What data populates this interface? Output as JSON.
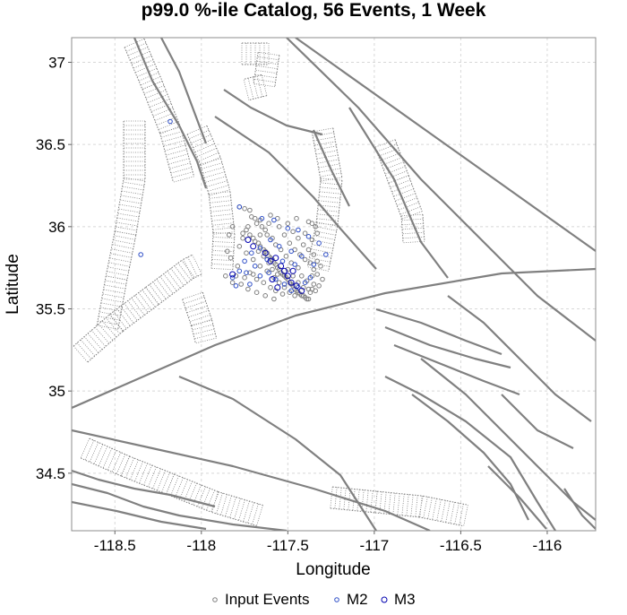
{
  "chart_data": {
    "type": "scatter",
    "title": "p99.0 %-ile Catalog, 56 Events, 1 Week",
    "xlabel": "Longitude",
    "ylabel": "Latitude",
    "xlim": [
      -118.75,
      -115.72
    ],
    "ylim": [
      34.15,
      37.15
    ],
    "x_ticks": [
      -118.5,
      -118,
      -117.5,
      -117,
      -116.5,
      -116
    ],
    "y_ticks": [
      34.5,
      35,
      35.5,
      36,
      36.5,
      37
    ],
    "x_tick_labels": [
      "-118.5",
      "-118",
      "-117.5",
      "-117",
      "-116.5",
      "-116"
    ],
    "y_tick_labels": [
      "34.5",
      "35",
      "35.5",
      "36",
      "36.5",
      "37"
    ],
    "grid": true,
    "legend_position": "bottom-center",
    "colors": {
      "input": "#808080",
      "m2": "#3050c8",
      "m3": "#0000b0",
      "fault": "#808080",
      "grid": "#d8d8d8"
    },
    "series": [
      {
        "name": "Input Events",
        "points": [
          [
            -117.78,
            36.12
          ],
          [
            -117.75,
            36.11
          ],
          [
            -117.72,
            36.1
          ],
          [
            -117.71,
            36.06
          ],
          [
            -117.69,
            36.05
          ],
          [
            -117.74,
            35.98
          ],
          [
            -117.72,
            35.95
          ],
          [
            -117.7,
            35.93
          ],
          [
            -117.69,
            35.91
          ],
          [
            -117.67,
            35.9
          ],
          [
            -117.66,
            35.88
          ],
          [
            -117.64,
            35.86
          ],
          [
            -117.63,
            35.85
          ],
          [
            -117.62,
            35.84
          ],
          [
            -117.61,
            35.82
          ],
          [
            -117.6,
            35.81
          ],
          [
            -117.59,
            35.8
          ],
          [
            -117.58,
            35.78
          ],
          [
            -117.57,
            35.77
          ],
          [
            -117.56,
            35.75
          ],
          [
            -117.55,
            35.74
          ],
          [
            -117.54,
            35.72
          ],
          [
            -117.53,
            35.71
          ],
          [
            -117.52,
            35.7
          ],
          [
            -117.51,
            35.69
          ],
          [
            -117.5,
            35.68
          ],
          [
            -117.49,
            35.66
          ],
          [
            -117.48,
            35.65
          ],
          [
            -117.47,
            35.64
          ],
          [
            -117.46,
            35.62
          ],
          [
            -117.45,
            35.61
          ],
          [
            -117.44,
            35.6
          ],
          [
            -117.43,
            35.59
          ],
          [
            -117.42,
            35.58
          ],
          [
            -117.41,
            35.58
          ],
          [
            -117.4,
            35.57
          ],
          [
            -117.39,
            35.56
          ],
          [
            -117.38,
            35.56
          ],
          [
            -117.37,
            35.6
          ],
          [
            -117.36,
            35.62
          ],
          [
            -117.35,
            35.65
          ],
          [
            -117.76,
            35.93
          ],
          [
            -117.78,
            35.88
          ],
          [
            -117.74,
            35.84
          ],
          [
            -117.7,
            35.8
          ],
          [
            -117.66,
            35.76
          ],
          [
            -117.62,
            35.73
          ],
          [
            -117.58,
            35.69
          ],
          [
            -117.55,
            35.66
          ],
          [
            -117.52,
            35.63
          ],
          [
            -117.49,
            35.6
          ],
          [
            -117.46,
            35.58
          ],
          [
            -117.72,
            35.72
          ],
          [
            -117.68,
            35.68
          ],
          [
            -117.64,
            35.66
          ],
          [
            -117.6,
            35.63
          ],
          [
            -117.57,
            35.61
          ],
          [
            -117.53,
            35.59
          ],
          [
            -117.79,
            35.76
          ],
          [
            -117.8,
            35.7
          ],
          [
            -117.77,
            35.65
          ],
          [
            -117.73,
            35.62
          ],
          [
            -117.68,
            35.6
          ],
          [
            -117.63,
            35.58
          ],
          [
            -117.58,
            35.56
          ],
          [
            -117.55,
            36.0
          ],
          [
            -117.52,
            35.95
          ],
          [
            -117.49,
            35.9
          ],
          [
            -117.46,
            35.86
          ],
          [
            -117.43,
            35.83
          ],
          [
            -117.4,
            35.8
          ],
          [
            -117.37,
            35.78
          ],
          [
            -117.35,
            35.74
          ],
          [
            -117.38,
            36.03
          ],
          [
            -117.36,
            36.02
          ],
          [
            -117.34,
            36.0
          ],
          [
            -117.33,
            35.96
          ],
          [
            -117.36,
            35.92
          ],
          [
            -117.4,
            35.96
          ],
          [
            -117.45,
            36.05
          ],
          [
            -117.6,
            36.07
          ],
          [
            -117.66,
            36.04
          ],
          [
            -117.82,
            36.0
          ],
          [
            -117.84,
            35.95
          ],
          [
            -117.85,
            35.85
          ],
          [
            -117.83,
            35.81
          ],
          [
            -117.86,
            35.7
          ],
          [
            -117.82,
            35.66
          ],
          [
            -117.75,
            35.69
          ],
          [
            -117.7,
            35.71
          ],
          [
            -117.66,
            35.95
          ],
          [
            -117.63,
            35.98
          ],
          [
            -117.61,
            36.02
          ],
          [
            -117.56,
            36.05
          ],
          [
            -117.5,
            36.02
          ],
          [
            -117.47,
            35.97
          ],
          [
            -117.44,
            35.93
          ],
          [
            -117.41,
            35.89
          ],
          [
            -117.38,
            35.86
          ],
          [
            -117.35,
            35.83
          ],
          [
            -117.33,
            35.79
          ],
          [
            -117.31,
            35.76
          ],
          [
            -117.42,
            35.7
          ],
          [
            -117.39,
            35.67
          ],
          [
            -117.36,
            35.7
          ],
          [
            -117.44,
            35.75
          ],
          [
            -117.48,
            35.78
          ],
          [
            -117.51,
            35.82
          ],
          [
            -117.54,
            35.86
          ],
          [
            -117.57,
            35.89
          ],
          [
            -117.59,
            35.93
          ],
          [
            -117.62,
            35.95
          ],
          [
            -117.65,
            36.0
          ],
          [
            -117.68,
            36.02
          ],
          [
            -117.73,
            36.0
          ],
          [
            -117.76,
            35.96
          ],
          [
            -117.61,
            35.78
          ],
          [
            -117.64,
            35.82
          ],
          [
            -117.67,
            35.85
          ],
          [
            -117.59,
            35.74
          ],
          [
            -117.56,
            35.71
          ],
          [
            -117.5,
            35.74
          ],
          [
            -117.47,
            35.7
          ],
          [
            -117.44,
            35.66
          ],
          [
            -117.41,
            35.63
          ],
          [
            -117.38,
            35.62
          ],
          [
            -117.34,
            35.61
          ],
          [
            -117.32,
            35.64
          ],
          [
            -117.3,
            35.68
          ],
          [
            -117.33,
            35.71
          ]
        ]
      },
      {
        "name": "M2",
        "points": [
          [
            -118.18,
            36.64
          ],
          [
            -118.35,
            35.83
          ],
          [
            -117.78,
            36.12
          ],
          [
            -117.65,
            36.05
          ],
          [
            -117.58,
            36.04
          ],
          [
            -117.5,
            35.99
          ],
          [
            -117.44,
            35.98
          ],
          [
            -117.38,
            35.94
          ],
          [
            -117.32,
            35.9
          ],
          [
            -117.28,
            35.83
          ],
          [
            -117.35,
            35.77
          ],
          [
            -117.42,
            35.82
          ],
          [
            -117.48,
            35.85
          ],
          [
            -117.55,
            35.88
          ],
          [
            -117.6,
            35.92
          ],
          [
            -117.66,
            35.87
          ],
          [
            -117.71,
            35.84
          ],
          [
            -117.75,
            35.79
          ],
          [
            -117.78,
            35.73
          ],
          [
            -117.82,
            35.69
          ],
          [
            -117.8,
            35.64
          ],
          [
            -117.72,
            35.65
          ],
          [
            -117.66,
            35.7
          ],
          [
            -117.61,
            35.72
          ],
          [
            -117.57,
            35.68
          ],
          [
            -117.52,
            35.65
          ],
          [
            -117.48,
            35.61
          ],
          [
            -117.44,
            35.63
          ],
          [
            -117.4,
            35.66
          ],
          [
            -117.37,
            35.69
          ],
          [
            -117.46,
            35.77
          ],
          [
            -117.53,
            35.79
          ],
          [
            -117.62,
            35.8
          ],
          [
            -117.69,
            35.76
          ],
          [
            -117.74,
            35.72
          ]
        ]
      },
      {
        "name": "M3",
        "points": [
          [
            -117.73,
            35.92
          ],
          [
            -117.7,
            35.88
          ],
          [
            -117.63,
            35.84
          ],
          [
            -117.6,
            35.79
          ],
          [
            -117.57,
            35.81
          ],
          [
            -117.54,
            35.76
          ],
          [
            -117.52,
            35.73
          ],
          [
            -117.5,
            35.7
          ],
          [
            -117.48,
            35.66
          ],
          [
            -117.45,
            35.64
          ],
          [
            -117.42,
            35.61
          ],
          [
            -117.56,
            35.63
          ],
          [
            -117.47,
            35.73
          ],
          [
            -117.59,
            35.68
          ],
          [
            -117.82,
            35.71
          ]
        ]
      }
    ]
  },
  "legend": {
    "items": [
      {
        "label": "Input Events",
        "color": "#808080"
      },
      {
        "label": "M2",
        "color": "#3050c8"
      },
      {
        "label": "M3",
        "color": "#0000b0"
      }
    ]
  }
}
